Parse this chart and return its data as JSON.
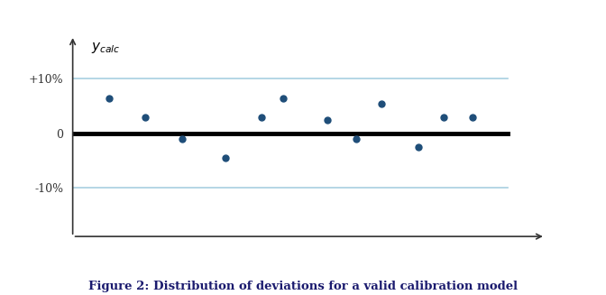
{
  "title": "Figure 2: Distribution of deviations for a valid calibration model",
  "ylabel": "$y_{calc}$",
  "ytick_labels": [
    "-10%",
    "0",
    "+10%"
  ],
  "ytick_values": [
    -10,
    0,
    10
  ],
  "ylim": [
    -20,
    18
  ],
  "xlim": [
    0,
    13
  ],
  "hline_zero_color": "#000000",
  "hline_zero_lw": 3.5,
  "hline_band_color": "#a8cfe0",
  "hline_band_lw": 1.2,
  "scatter_color": "#1f4e79",
  "scatter_x": [
    1.0,
    2.0,
    3.0,
    4.2,
    5.2,
    5.8,
    7.0,
    7.8,
    8.5,
    9.5,
    10.2,
    11.0
  ],
  "scatter_y": [
    6.5,
    3.0,
    -1.0,
    -4.5,
    3.0,
    6.5,
    2.5,
    -1.0,
    5.5,
    -2.5,
    3.0,
    3.0
  ],
  "background_color": "#ffffff",
  "fig_width": 6.72,
  "fig_height": 3.27,
  "caption_color": "#1a1a6e",
  "arrow_color": "#333333"
}
